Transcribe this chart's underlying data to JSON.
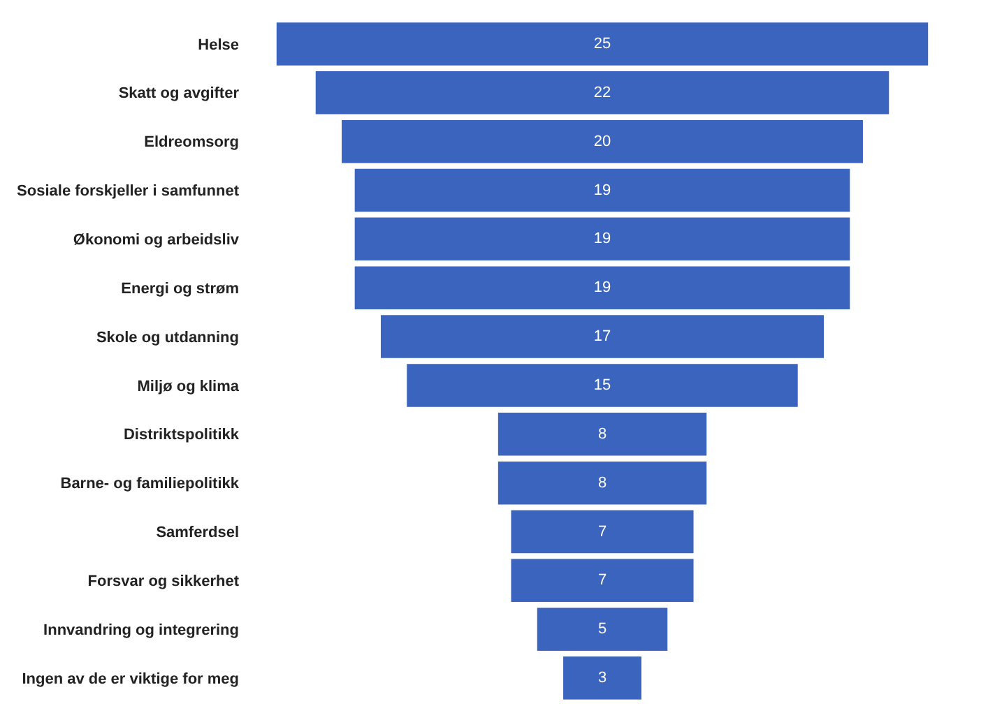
{
  "chart_data": {
    "type": "other",
    "categories": [
      "Helse",
      "Skatt og avgifter",
      "Eldreomsorg",
      "Sosiale forskjeller i samfunnet",
      "Økonomi og arbeidsliv",
      "Energi og strøm",
      "Skole og utdanning",
      "Miljø og klima",
      "Distriktspolitikk",
      "Barne- og familiepolitikk",
      "Samferdsel",
      "Forsvar og sikkerhet",
      "Innvandring og integrering",
      "Ingen av de er viktige for meg"
    ],
    "values": [
      25,
      22,
      20,
      19,
      19,
      19,
      17,
      15,
      8,
      8,
      7,
      7,
      5,
      3
    ],
    "color": "#3a64bd",
    "data_labels": true
  }
}
